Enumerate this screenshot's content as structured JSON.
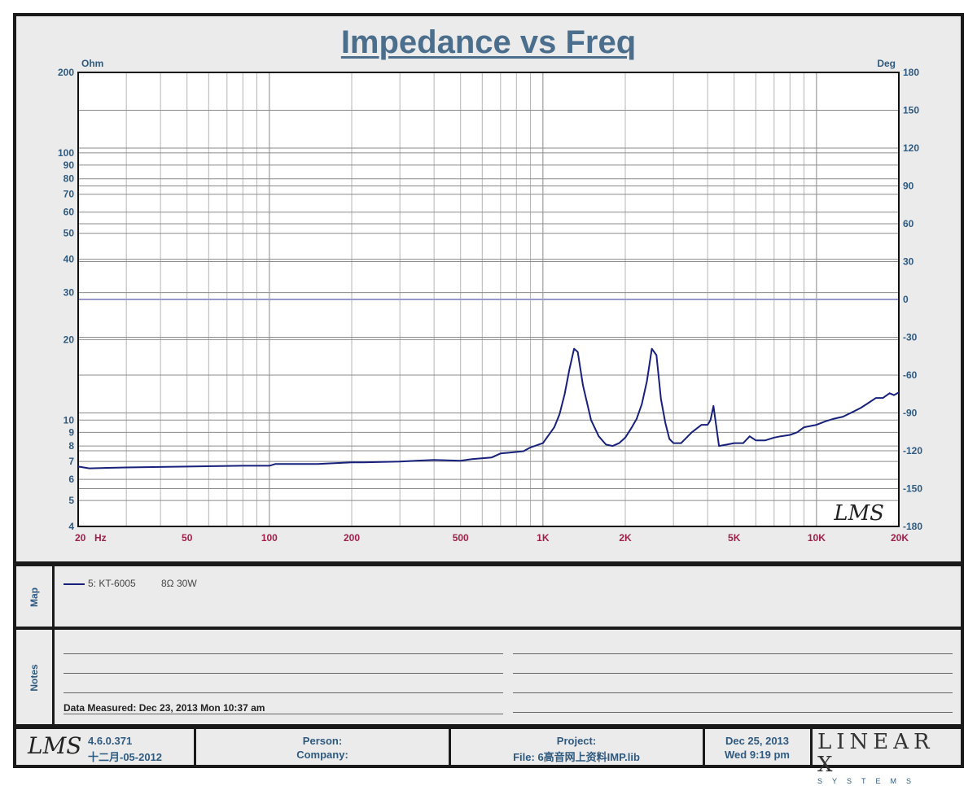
{
  "title": "Impedance vs Freq",
  "chart_data": {
    "type": "line",
    "title": "Impedance vs Freq",
    "xlabel": "Hz",
    "ylabel": "Ohm",
    "y2label": "Deg",
    "xscale": "log",
    "yscale": "log",
    "xlim": [
      20,
      20000
    ],
    "ylim": [
      4,
      200
    ],
    "y2lim": [
      -180,
      180
    ],
    "x_ticks": [
      {
        "v": 20,
        "label": "20"
      },
      {
        "v": 50,
        "label": "50"
      },
      {
        "v": 100,
        "label": "100"
      },
      {
        "v": 200,
        "label": "200"
      },
      {
        "v": 500,
        "label": "500"
      },
      {
        "v": 1000,
        "label": "1K"
      },
      {
        "v": 2000,
        "label": "2K"
      },
      {
        "v": 5000,
        "label": "5K"
      },
      {
        "v": 10000,
        "label": "10K"
      },
      {
        "v": 20000,
        "label": "20K"
      }
    ],
    "y_ticks": [
      {
        "v": 4,
        "label": "4"
      },
      {
        "v": 5,
        "label": "5"
      },
      {
        "v": 6,
        "label": "6"
      },
      {
        "v": 7,
        "label": "7"
      },
      {
        "v": 8,
        "label": "8"
      },
      {
        "v": 9,
        "label": "9"
      },
      {
        "v": 10,
        "label": "10"
      },
      {
        "v": 20,
        "label": "20"
      },
      {
        "v": 30,
        "label": "30"
      },
      {
        "v": 40,
        "label": "40"
      },
      {
        "v": 50,
        "label": "50"
      },
      {
        "v": 60,
        "label": "60"
      },
      {
        "v": 70,
        "label": "70"
      },
      {
        "v": 80,
        "label": "80"
      },
      {
        "v": 90,
        "label": "90"
      },
      {
        "v": 100,
        "label": "100"
      },
      {
        "v": 200,
        "label": "200"
      }
    ],
    "y2_ticks": [
      180,
      150,
      120,
      90,
      60,
      30,
      0,
      -30,
      -60,
      -90,
      -120,
      -150,
      -180
    ],
    "phase_line": 0,
    "watermark": "LMS",
    "grid": true,
    "series": [
      {
        "name": "5: KT-6005",
        "color": "#17207a",
        "x": [
          20,
          22,
          30,
          50,
          80,
          100,
          105,
          150,
          200,
          220,
          300,
          400,
          500,
          550,
          650,
          700,
          750,
          850,
          900,
          1000,
          1100,
          1150,
          1200,
          1250,
          1300,
          1340,
          1400,
          1500,
          1600,
          1700,
          1800,
          1900,
          2000,
          2100,
          2200,
          2300,
          2400,
          2500,
          2600,
          2700,
          2800,
          2900,
          3000,
          3200,
          3500,
          3800,
          4000,
          4100,
          4200,
          4400,
          4700,
          5000,
          5400,
          5700,
          6000,
          6500,
          7000,
          7400,
          8000,
          8500,
          9000,
          10000,
          10800,
          11500,
          12500,
          13500,
          14500,
          15500,
          16500,
          17500,
          18500,
          19200,
          20000
        ],
        "values": [
          6.7,
          6.6,
          6.65,
          6.7,
          6.75,
          6.75,
          6.85,
          6.85,
          6.95,
          6.95,
          7.0,
          7.1,
          7.05,
          7.15,
          7.25,
          7.5,
          7.55,
          7.65,
          7.9,
          8.2,
          9.4,
          10.5,
          12.5,
          15.5,
          18.5,
          18.0,
          13.5,
          10.0,
          8.7,
          8.1,
          8.0,
          8.2,
          8.6,
          9.3,
          10.1,
          11.5,
          14.0,
          18.5,
          17.5,
          12.0,
          9.8,
          8.5,
          8.2,
          8.2,
          9.0,
          9.6,
          9.6,
          10.0,
          11.3,
          8.0,
          8.1,
          8.2,
          8.2,
          8.7,
          8.4,
          8.4,
          8.6,
          8.7,
          8.8,
          9.0,
          9.4,
          9.6,
          9.9,
          10.1,
          10.3,
          10.7,
          11.1,
          11.6,
          12.1,
          12.1,
          12.6,
          12.4,
          12.7
        ]
      }
    ]
  },
  "legend": {
    "panel_label": "Map",
    "entries": [
      {
        "name": "5: KT-6005",
        "desc": "8Ω  30W"
      }
    ]
  },
  "notes": {
    "panel_label": "Notes",
    "measured": "Data Measured: Dec 23, 2013  Mon 10:37 am"
  },
  "footer": {
    "logo": "LMS",
    "version": "4.6.0.371",
    "build_date": "十二月-05-2012",
    "person_label": "Person:",
    "company_label": "Company:",
    "project_label": "Project:",
    "file_label": "File: 6高音网上资料IMP.lib",
    "date": "Dec 25, 2013",
    "time": "Wed  9:19 pm",
    "brand": "LINEAR X",
    "brand_sub": "SYSTEMS"
  }
}
